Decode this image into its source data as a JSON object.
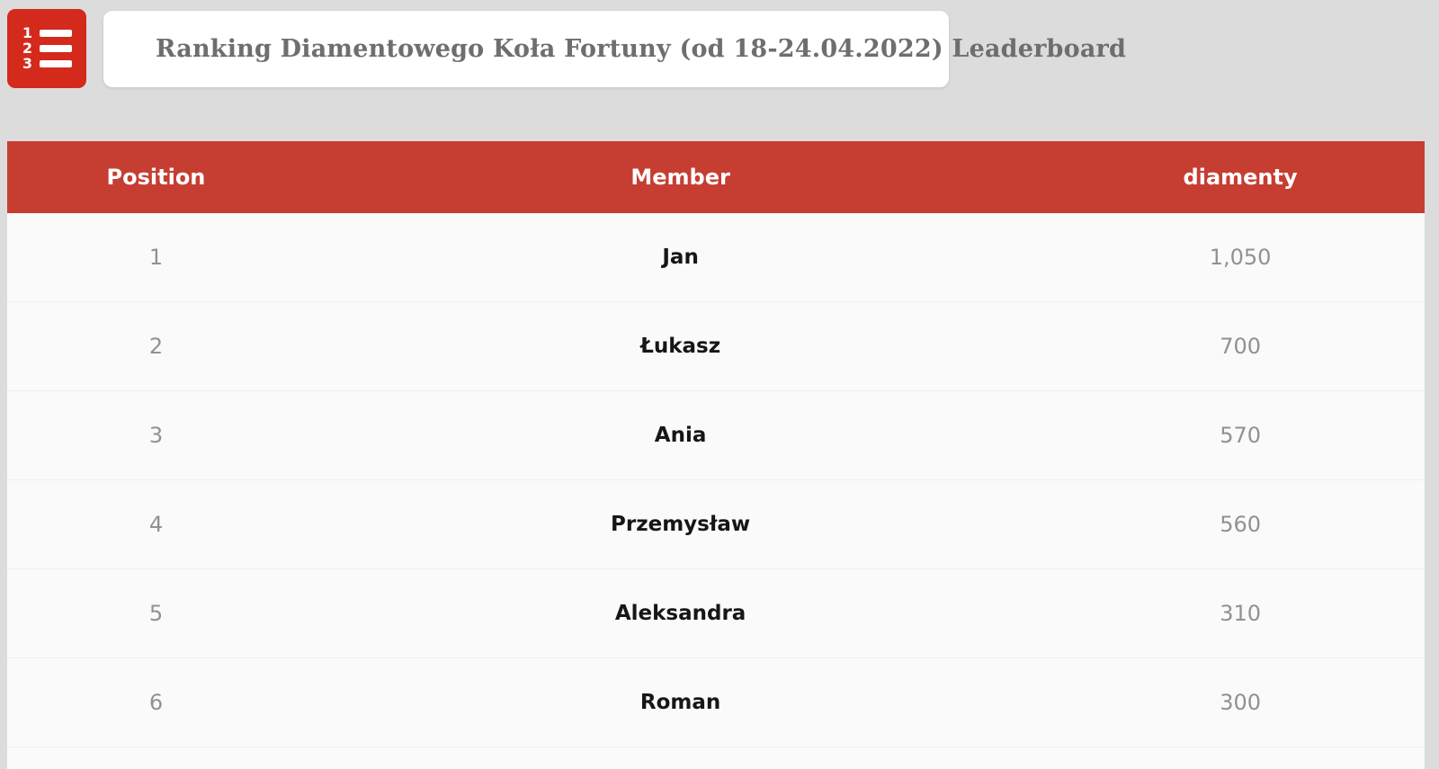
{
  "colors": {
    "page_bg": "#dcdcdc",
    "icon_red": "#d32a1c",
    "header_red": "#c63d32"
  },
  "toolbar": {
    "icon": "ordered-list-icon",
    "title": "Ranking Diamentowego Koła Fortuny (od 18-24.04.2022) Leaderboard"
  },
  "table": {
    "columns": {
      "position": "Position",
      "member": "Member",
      "diamenty": "diamenty"
    },
    "rows": [
      {
        "position": "1",
        "member": "Jan",
        "diamenty": "1,050"
      },
      {
        "position": "2",
        "member": "Łukasz",
        "diamenty": "700"
      },
      {
        "position": "3",
        "member": "Ania",
        "diamenty": "570"
      },
      {
        "position": "4",
        "member": "Przemysław",
        "diamenty": "560"
      },
      {
        "position": "5",
        "member": "Aleksandra",
        "diamenty": "310"
      },
      {
        "position": "6",
        "member": "Roman",
        "diamenty": "300"
      }
    ]
  }
}
